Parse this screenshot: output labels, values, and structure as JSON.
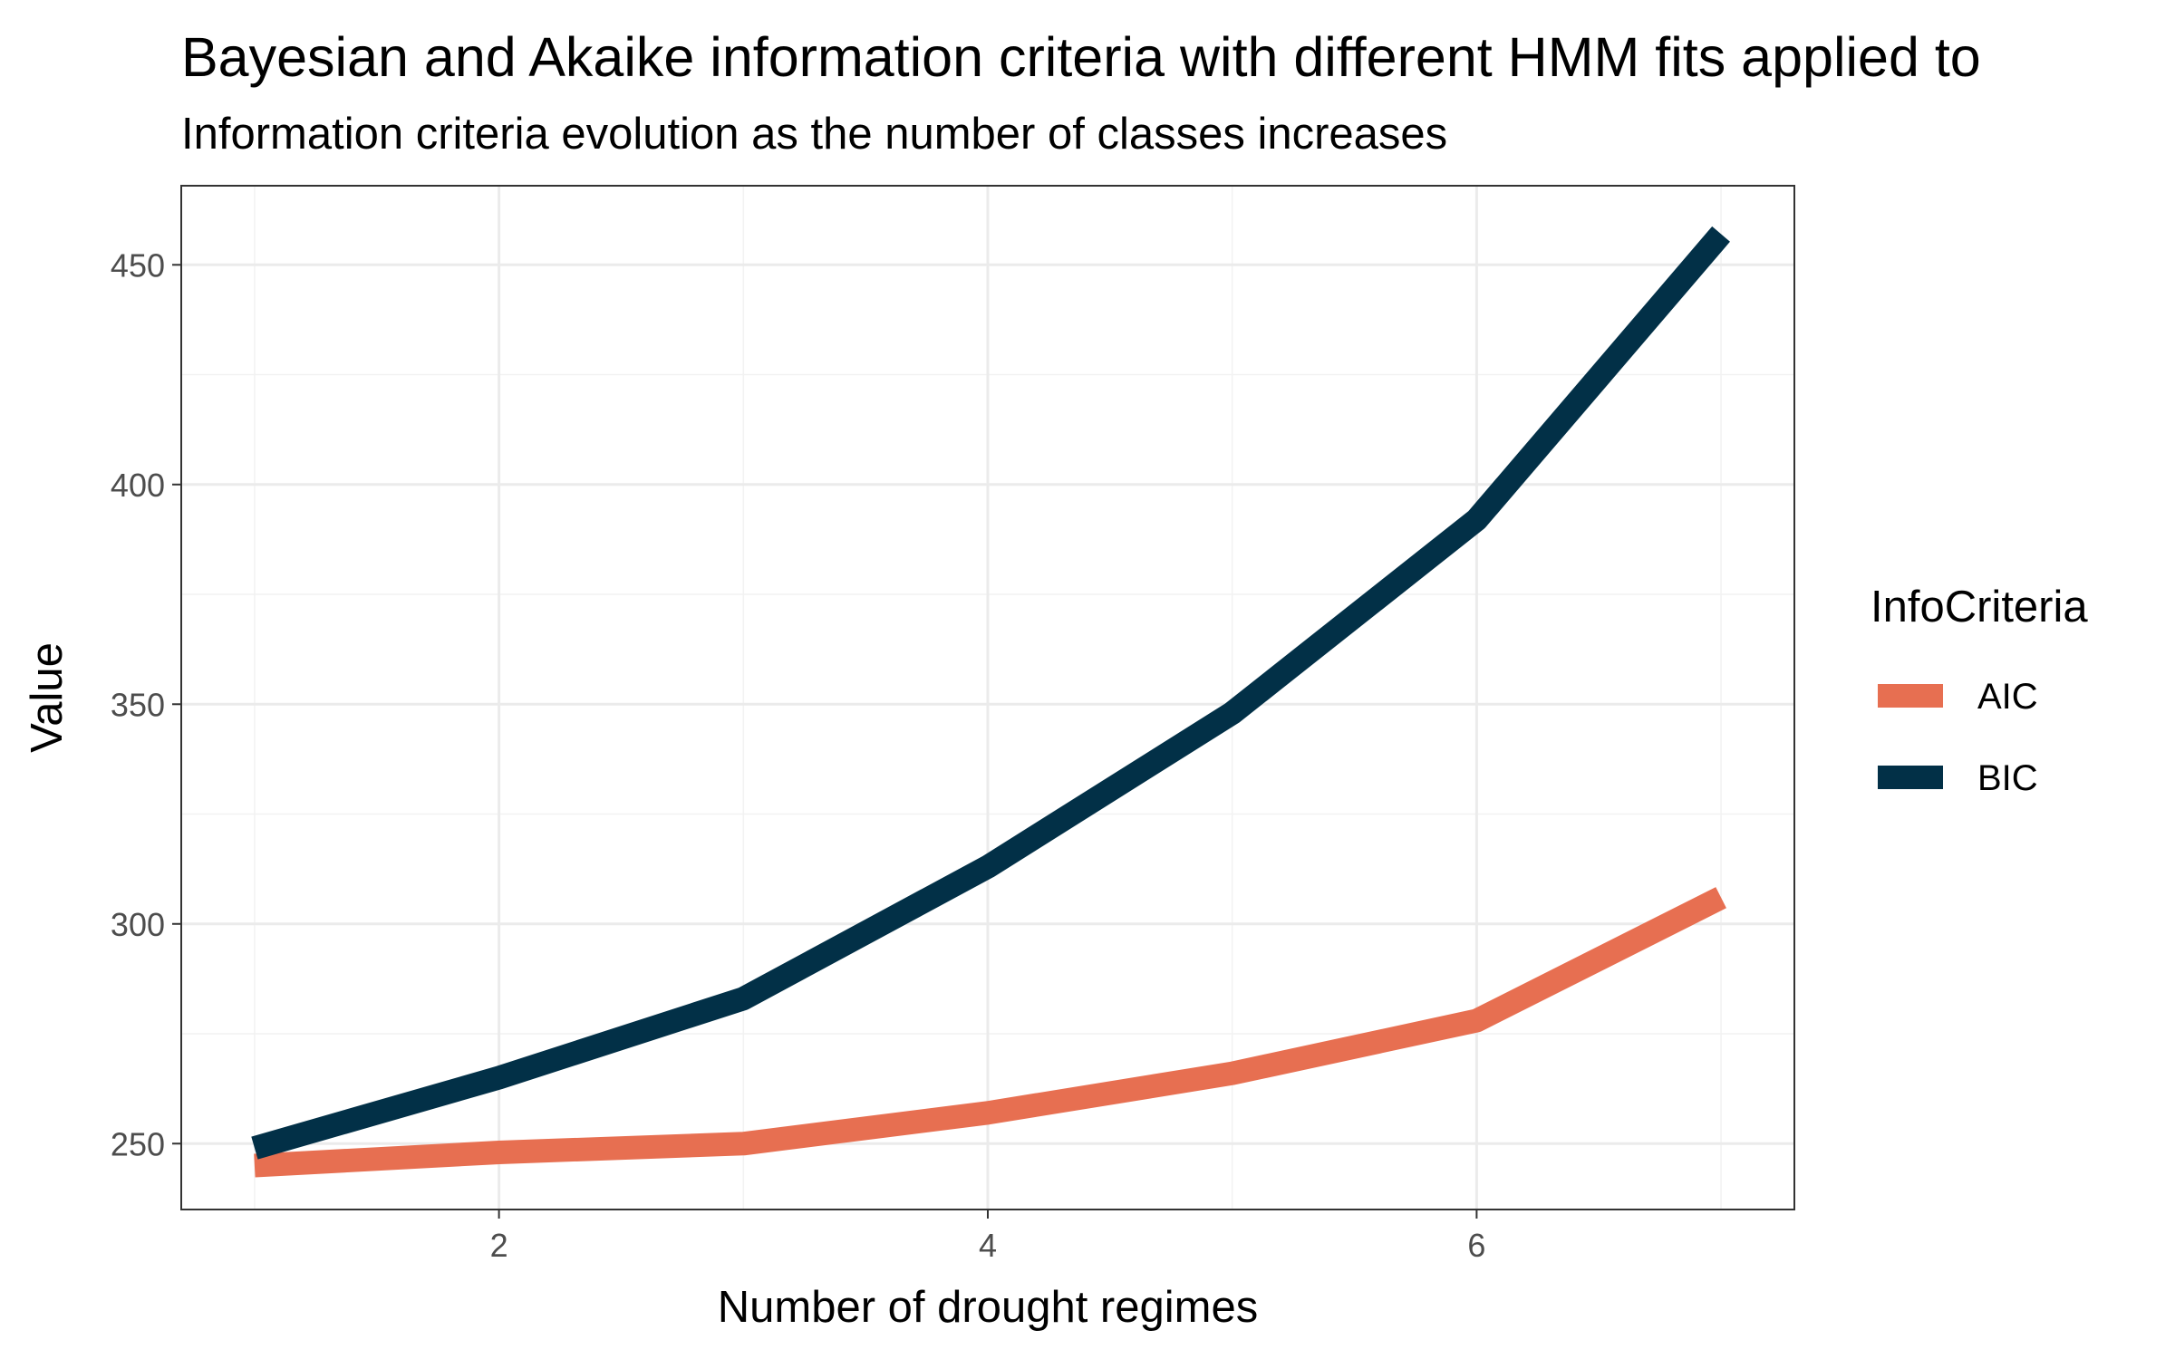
{
  "chart_data": {
    "type": "line",
    "title": "Bayesian and Akaike information criteria with different HMM fits applied to",
    "subtitle": "Information criteria evolution as the number of classes increases",
    "xlabel": "Number of drought regimes",
    "ylabel": "Value",
    "x": [
      1,
      2,
      3,
      4,
      5,
      6,
      7
    ],
    "xlim": [
      0.7,
      7.3
    ],
    "ylim": [
      235,
      468
    ],
    "x_ticks": [
      2,
      4,
      6
    ],
    "y_ticks": [
      250,
      300,
      350,
      400,
      450
    ],
    "grid": true,
    "legend": {
      "title": "InfoCriteria",
      "position": "right"
    },
    "series": [
      {
        "name": "AIC",
        "color": "#e76f51",
        "values": [
          245,
          248,
          250,
          257,
          266,
          278,
          306
        ]
      },
      {
        "name": "BIC",
        "color": "#023047",
        "values": [
          249,
          265,
          283,
          313,
          348,
          392,
          457
        ]
      }
    ]
  }
}
